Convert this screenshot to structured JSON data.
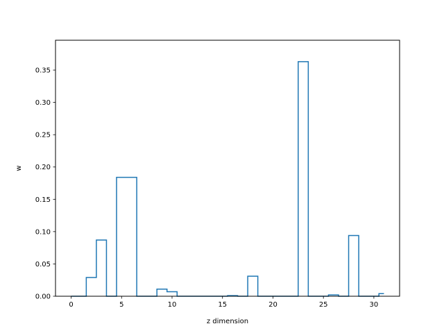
{
  "chart_data": {
    "type": "step",
    "xlabel": "z dimension",
    "ylabel": "w",
    "xlim": [
      -1.55,
      32.55
    ],
    "ylim": [
      0,
      0.3962
    ],
    "x_ticks": [
      0,
      5,
      10,
      15,
      20,
      25,
      30
    ],
    "y_ticks": [
      0.0,
      0.05,
      0.1,
      0.15,
      0.2,
      0.25,
      0.3,
      0.35
    ],
    "y_tick_labels": [
      "0.00",
      "0.05",
      "0.10",
      "0.15",
      "0.20",
      "0.25",
      "0.30",
      "0.35"
    ],
    "series": [
      {
        "color": "#1f77b4",
        "step_where": "mid",
        "x": [
          0,
          1,
          2,
          3,
          4,
          5,
          6,
          7,
          8,
          9,
          10,
          11,
          12,
          13,
          14,
          15,
          16,
          17,
          18,
          19,
          20,
          21,
          22,
          23,
          24,
          25,
          26,
          27,
          28,
          29,
          30,
          31
        ],
        "values": [
          0.0,
          0.0,
          0.029,
          0.087,
          0.0,
          0.184,
          0.184,
          0.0,
          0.0,
          0.011,
          0.007,
          0.0,
          0.0,
          0.0,
          0.0,
          0.0,
          0.001,
          0.0,
          0.031,
          0.0,
          0.0,
          0.0,
          0.0,
          0.363,
          0.0,
          0.0,
          0.002,
          0.0,
          0.094,
          0.0,
          0.0,
          0.004
        ]
      }
    ],
    "grid": false,
    "legend": false
  }
}
